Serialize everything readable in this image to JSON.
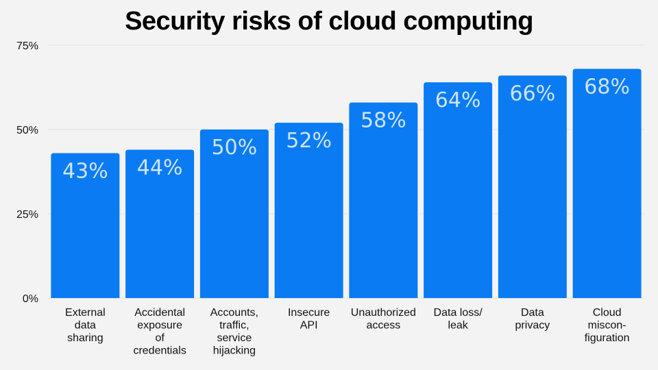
{
  "chart_data": {
    "type": "bar",
    "title": "Security risks of cloud computing",
    "xlabel": "",
    "ylabel": "",
    "ylim": [
      0,
      75
    ],
    "yticks": [
      "0%",
      "25%",
      "50%",
      "75%"
    ],
    "ytick_values": [
      0,
      25,
      50,
      75
    ],
    "grid": true,
    "bar_color": "#0a7bf2",
    "label_color": "#cfe4ff",
    "categories": [
      [
        "External",
        "data",
        "sharing"
      ],
      [
        "Accidental",
        "exposure",
        "of",
        "credentials"
      ],
      [
        "Accounts,",
        "traffic,",
        "service",
        "hijacking"
      ],
      [
        "Insecure",
        "API"
      ],
      [
        "Unauthorized",
        "access"
      ],
      [
        "Data loss/",
        "leak"
      ],
      [
        "Data",
        "privacy"
      ],
      [
        "Cloud",
        "miscon-",
        "figuration"
      ]
    ],
    "values": [
      43,
      44,
      50,
      52,
      58,
      64,
      66,
      68
    ],
    "data_labels": [
      "43%",
      "44%",
      "50%",
      "52%",
      "58%",
      "64%",
      "66%",
      "68%"
    ]
  }
}
